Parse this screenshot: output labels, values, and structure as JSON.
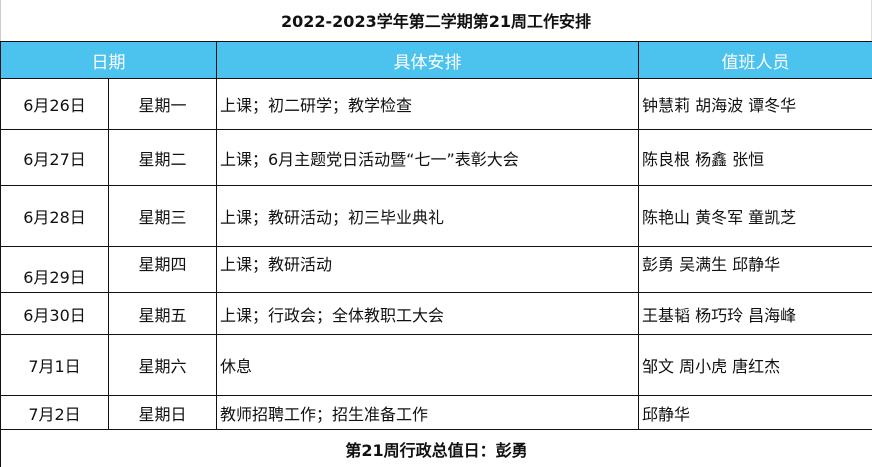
{
  "title": "2022-2023学年第二学期第21周工作安排",
  "header": {
    "date": "日期",
    "plan": "具体安排",
    "duty": "值班人员"
  },
  "colors": {
    "header_bg": "#4cc3ef",
    "header_text": "#ffffff"
  },
  "rows": [
    {
      "date": "6月26日",
      "weekday": "星期一",
      "plan": "上课；初二研学；教学检查",
      "duty": "钟慧莉 胡海波  谭冬华"
    },
    {
      "date": "6月27日",
      "weekday": "星期二",
      "plan": "上课；6月主题党日活动暨“七一”表彰大会",
      "duty": "陈良根 杨鑫   张恒"
    },
    {
      "date": "6月28日",
      "weekday": "星期三",
      "plan": "上课；教研活动；初三毕业典礼",
      "duty": "陈艳山  黄冬军  童凯芝"
    },
    {
      "date": "6月29日",
      "weekday": "星期四",
      "plan": "上课；教研活动",
      "duty": "彭勇  吴满生  邱静华"
    },
    {
      "date": "6月30日",
      "weekday": "星期五",
      "plan": "上课；行政会；全体教职工大会",
      "duty": "王基韬  杨巧玲  昌海峰"
    },
    {
      "date": "7月1日",
      "weekday": "星期六",
      "plan": "休息",
      "duty": "邹文  周小虎   唐红杰"
    },
    {
      "date": "7月2日",
      "weekday": "星期日",
      "plan": "教师招聘工作；招生准备工作",
      "duty": "邱静华"
    }
  ],
  "footer": "第21周行政总值日：彭勇"
}
